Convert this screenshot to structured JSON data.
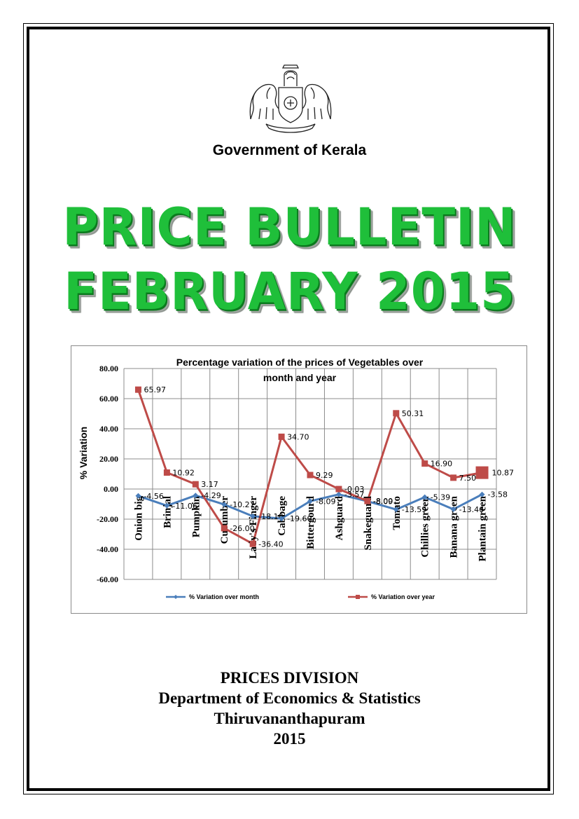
{
  "header": {
    "government": "Government of Kerala",
    "emblem_icon": "kerala-state-emblem"
  },
  "title": {
    "line1": "PRICE BULLETIN",
    "line2": "FEBRUARY 2015",
    "color": "#1fbf3a"
  },
  "chart_data": {
    "type": "line",
    "title": "Percentage variation of the prices of Vegetables over month and year",
    "title_lines": [
      "Percentage variation of the prices of Vegetables over",
      "month and year"
    ],
    "ylabel": "% Variation",
    "xlabel": "",
    "ylim": [
      -60,
      80
    ],
    "yticks": [
      80,
      60,
      40,
      20,
      0,
      -20,
      -40,
      -60
    ],
    "ytick_labels": [
      "80.00",
      "60.00",
      "40.00",
      "20.00",
      "0.00",
      "-20.00",
      "-40.00",
      "-60.00"
    ],
    "grid": true,
    "legend_position": "bottom",
    "categories": [
      "Onion big",
      "Brinjal",
      "Pumpkin",
      "Cucumber",
      "Lady's Finger",
      "Cabbage",
      "Bittergourd",
      "Ashguard",
      "Snakeguard",
      "Tomato",
      "Chillies green",
      "Banana green",
      "Plantain green"
    ],
    "series": [
      {
        "name": "%  Variation over month",
        "color": "#4a7ebb",
        "values": [
          -4.56,
          -11.06,
          -4.29,
          -10.27,
          -18.1,
          -19.6,
          -8.09,
          -3.57,
          -8.09,
          -13.59,
          -5.39,
          -13.46,
          -3.58
        ],
        "labels": [
          "-4.56",
          "-11.06",
          "-4.29",
          "-10.27",
          "-18.10",
          "-19.60",
          "-8.09",
          "-3.57",
          "-8.09",
          "-13.59",
          "-5.39",
          "-13.46",
          "-3.58"
        ]
      },
      {
        "name": "%  Variation over year",
        "color": "#be4b48",
        "values": [
          65.97,
          10.92,
          3.17,
          -26.0,
          -36.4,
          34.7,
          9.29,
          -0.03,
          -8.0,
          50.31,
          16.9,
          7.5,
          10.87
        ],
        "labels": [
          "65.97",
          "10.92",
          "3.17",
          "-26.00",
          "-36.40",
          "34.70",
          "9.29",
          "-0.03",
          "-8.00",
          "50.31",
          "16.90",
          "7.50",
          "10.87"
        ]
      }
    ]
  },
  "footer": {
    "division": "PRICES DIVISION",
    "department": "Department of Economics & Statistics",
    "city": "Thiruvananthapuram",
    "year": "2015"
  }
}
